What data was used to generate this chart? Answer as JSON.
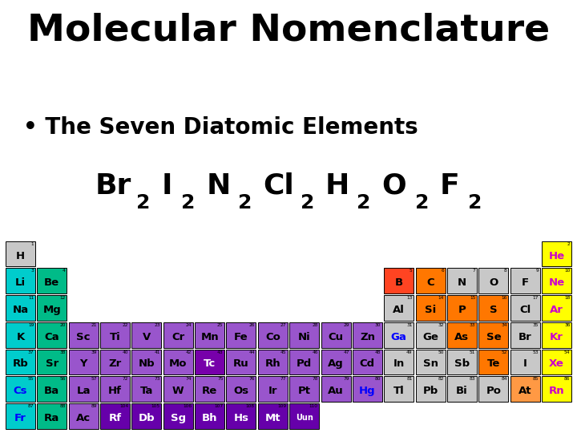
{
  "title": "Molecular Nomenclature",
  "bullet": "• The Seven Diatomic Elements",
  "bg_color": "#ffffff",
  "title_color": "#000000",
  "title_fontsize": 34,
  "bullet_fontsize": 20,
  "diatomic_fontsize": 26,
  "diatomic_sub_fontsize": 18,
  "diatomic_elements": [
    "Br",
    "I",
    "N",
    "Cl",
    "H",
    "O",
    "F"
  ],
  "periodic_table": {
    "num_cols": 18,
    "num_rows": 7,
    "elements": [
      {
        "symbol": "H",
        "num": "1",
        "row": 0,
        "col": 0,
        "color": "#c8c8c8",
        "text_color": "#000000"
      },
      {
        "symbol": "He",
        "num": "2",
        "row": 0,
        "col": 17,
        "color": "#ffff00",
        "text_color": "#cc00cc"
      },
      {
        "symbol": "Li",
        "num": "3",
        "row": 1,
        "col": 0,
        "color": "#00cccc",
        "text_color": "#000000"
      },
      {
        "symbol": "Be",
        "num": "4",
        "row": 1,
        "col": 1,
        "color": "#00bb88",
        "text_color": "#000000"
      },
      {
        "symbol": "B",
        "num": "5",
        "row": 1,
        "col": 12,
        "color": "#ff4422",
        "text_color": "#000000"
      },
      {
        "symbol": "C",
        "num": "6",
        "row": 1,
        "col": 13,
        "color": "#ff7700",
        "text_color": "#000000"
      },
      {
        "symbol": "N",
        "num": "7",
        "row": 1,
        "col": 14,
        "color": "#c8c8c8",
        "text_color": "#000000"
      },
      {
        "symbol": "O",
        "num": "8",
        "row": 1,
        "col": 15,
        "color": "#c8c8c8",
        "text_color": "#000000"
      },
      {
        "symbol": "F",
        "num": "9",
        "row": 1,
        "col": 16,
        "color": "#c8c8c8",
        "text_color": "#000000"
      },
      {
        "symbol": "Ne",
        "num": "10",
        "row": 1,
        "col": 17,
        "color": "#ffff00",
        "text_color": "#cc00cc"
      },
      {
        "symbol": "Na",
        "num": "11",
        "row": 2,
        "col": 0,
        "color": "#00cccc",
        "text_color": "#000000"
      },
      {
        "symbol": "Mg",
        "num": "12",
        "row": 2,
        "col": 1,
        "color": "#00bb88",
        "text_color": "#000000"
      },
      {
        "symbol": "Al",
        "num": "13",
        "row": 2,
        "col": 12,
        "color": "#c8c8c8",
        "text_color": "#000000"
      },
      {
        "symbol": "Si",
        "num": "14",
        "row": 2,
        "col": 13,
        "color": "#ff7700",
        "text_color": "#000000"
      },
      {
        "symbol": "P",
        "num": "15",
        "row": 2,
        "col": 14,
        "color": "#ff7700",
        "text_color": "#000000"
      },
      {
        "symbol": "S",
        "num": "16",
        "row": 2,
        "col": 15,
        "color": "#ff7700",
        "text_color": "#000000"
      },
      {
        "symbol": "Cl",
        "num": "17",
        "row": 2,
        "col": 16,
        "color": "#c8c8c8",
        "text_color": "#000000"
      },
      {
        "symbol": "Ar",
        "num": "18",
        "row": 2,
        "col": 17,
        "color": "#ffff00",
        "text_color": "#cc00cc"
      },
      {
        "symbol": "K",
        "num": "19",
        "row": 3,
        "col": 0,
        "color": "#00cccc",
        "text_color": "#000000"
      },
      {
        "symbol": "Ca",
        "num": "20",
        "row": 3,
        "col": 1,
        "color": "#00bb88",
        "text_color": "#000000"
      },
      {
        "symbol": "Sc",
        "num": "21",
        "row": 3,
        "col": 2,
        "color": "#9955cc",
        "text_color": "#000000"
      },
      {
        "symbol": "Ti",
        "num": "22",
        "row": 3,
        "col": 3,
        "color": "#9955cc",
        "text_color": "#000000"
      },
      {
        "symbol": "V",
        "num": "23",
        "row": 3,
        "col": 4,
        "color": "#9955cc",
        "text_color": "#000000"
      },
      {
        "symbol": "Cr",
        "num": "24",
        "row": 3,
        "col": 5,
        "color": "#9955cc",
        "text_color": "#000000"
      },
      {
        "symbol": "Mn",
        "num": "25",
        "row": 3,
        "col": 6,
        "color": "#9955cc",
        "text_color": "#000000"
      },
      {
        "symbol": "Fe",
        "num": "26",
        "row": 3,
        "col": 7,
        "color": "#9955cc",
        "text_color": "#000000"
      },
      {
        "symbol": "Co",
        "num": "27",
        "row": 3,
        "col": 8,
        "color": "#9955cc",
        "text_color": "#000000"
      },
      {
        "symbol": "Ni",
        "num": "28",
        "row": 3,
        "col": 9,
        "color": "#9955cc",
        "text_color": "#000000"
      },
      {
        "symbol": "Cu",
        "num": "29",
        "row": 3,
        "col": 10,
        "color": "#9955cc",
        "text_color": "#000000"
      },
      {
        "symbol": "Zn",
        "num": "30",
        "row": 3,
        "col": 11,
        "color": "#9955cc",
        "text_color": "#000000"
      },
      {
        "symbol": "Ga",
        "num": "31",
        "row": 3,
        "col": 12,
        "color": "#c8c8c8",
        "text_color": "#0000ff"
      },
      {
        "symbol": "Ge",
        "num": "32",
        "row": 3,
        "col": 13,
        "color": "#c8c8c8",
        "text_color": "#000000"
      },
      {
        "symbol": "As",
        "num": "33",
        "row": 3,
        "col": 14,
        "color": "#ff7700",
        "text_color": "#000000"
      },
      {
        "symbol": "Se",
        "num": "34",
        "row": 3,
        "col": 15,
        "color": "#ff7700",
        "text_color": "#000000"
      },
      {
        "symbol": "Br",
        "num": "35",
        "row": 3,
        "col": 16,
        "color": "#c8c8c8",
        "text_color": "#000000"
      },
      {
        "symbol": "Kr",
        "num": "36",
        "row": 3,
        "col": 17,
        "color": "#ffff00",
        "text_color": "#cc00cc"
      },
      {
        "symbol": "Rb",
        "num": "37",
        "row": 4,
        "col": 0,
        "color": "#00cccc",
        "text_color": "#000000"
      },
      {
        "symbol": "Sr",
        "num": "38",
        "row": 4,
        "col": 1,
        "color": "#00bb88",
        "text_color": "#000000"
      },
      {
        "symbol": "Y",
        "num": "39",
        "row": 4,
        "col": 2,
        "color": "#9955cc",
        "text_color": "#000000"
      },
      {
        "symbol": "Zr",
        "num": "40",
        "row": 4,
        "col": 3,
        "color": "#9955cc",
        "text_color": "#000000"
      },
      {
        "symbol": "Nb",
        "num": "41",
        "row": 4,
        "col": 4,
        "color": "#9955cc",
        "text_color": "#000000"
      },
      {
        "symbol": "Mo",
        "num": "42",
        "row": 4,
        "col": 5,
        "color": "#9955cc",
        "text_color": "#000000"
      },
      {
        "symbol": "Tc",
        "num": "43",
        "row": 4,
        "col": 6,
        "color": "#7700aa",
        "text_color": "#ffffff"
      },
      {
        "symbol": "Ru",
        "num": "44",
        "row": 4,
        "col": 7,
        "color": "#9955cc",
        "text_color": "#000000"
      },
      {
        "symbol": "Rh",
        "num": "45",
        "row": 4,
        "col": 8,
        "color": "#9955cc",
        "text_color": "#000000"
      },
      {
        "symbol": "Pd",
        "num": "46",
        "row": 4,
        "col": 9,
        "color": "#9955cc",
        "text_color": "#000000"
      },
      {
        "symbol": "Ag",
        "num": "47",
        "row": 4,
        "col": 10,
        "color": "#9955cc",
        "text_color": "#000000"
      },
      {
        "symbol": "Cd",
        "num": "48",
        "row": 4,
        "col": 11,
        "color": "#9955cc",
        "text_color": "#000000"
      },
      {
        "symbol": "In",
        "num": "49",
        "row": 4,
        "col": 12,
        "color": "#c8c8c8",
        "text_color": "#000000"
      },
      {
        "symbol": "Sn",
        "num": "50",
        "row": 4,
        "col": 13,
        "color": "#c8c8c8",
        "text_color": "#000000"
      },
      {
        "symbol": "Sb",
        "num": "51",
        "row": 4,
        "col": 14,
        "color": "#c8c8c8",
        "text_color": "#000000"
      },
      {
        "symbol": "Te",
        "num": "52",
        "row": 4,
        "col": 15,
        "color": "#ff7700",
        "text_color": "#000000"
      },
      {
        "symbol": "I",
        "num": "53",
        "row": 4,
        "col": 16,
        "color": "#c8c8c8",
        "text_color": "#000000"
      },
      {
        "symbol": "Xe",
        "num": "54",
        "row": 4,
        "col": 17,
        "color": "#ffff00",
        "text_color": "#cc00cc"
      },
      {
        "symbol": "Cs",
        "num": "55",
        "row": 5,
        "col": 0,
        "color": "#00cccc",
        "text_color": "#0000ff"
      },
      {
        "symbol": "Ba",
        "num": "56",
        "row": 5,
        "col": 1,
        "color": "#00bb88",
        "text_color": "#000000"
      },
      {
        "symbol": "La",
        "num": "57",
        "row": 5,
        "col": 2,
        "color": "#9955cc",
        "text_color": "#000000"
      },
      {
        "symbol": "Hf",
        "num": "72",
        "row": 5,
        "col": 3,
        "color": "#9955cc",
        "text_color": "#000000"
      },
      {
        "symbol": "Ta",
        "num": "73",
        "row": 5,
        "col": 4,
        "color": "#9955cc",
        "text_color": "#000000"
      },
      {
        "symbol": "W",
        "num": "74",
        "row": 5,
        "col": 5,
        "color": "#9955cc",
        "text_color": "#000000"
      },
      {
        "symbol": "Re",
        "num": "75",
        "row": 5,
        "col": 6,
        "color": "#9955cc",
        "text_color": "#000000"
      },
      {
        "symbol": "Os",
        "num": "76",
        "row": 5,
        "col": 7,
        "color": "#9955cc",
        "text_color": "#000000"
      },
      {
        "symbol": "Ir",
        "num": "77",
        "row": 5,
        "col": 8,
        "color": "#9955cc",
        "text_color": "#000000"
      },
      {
        "symbol": "Pt",
        "num": "78",
        "row": 5,
        "col": 9,
        "color": "#9955cc",
        "text_color": "#000000"
      },
      {
        "symbol": "Au",
        "num": "79",
        "row": 5,
        "col": 10,
        "color": "#9955cc",
        "text_color": "#000000"
      },
      {
        "symbol": "Hg",
        "num": "80",
        "row": 5,
        "col": 11,
        "color": "#9955cc",
        "text_color": "#0000ff"
      },
      {
        "symbol": "Tl",
        "num": "81",
        "row": 5,
        "col": 12,
        "color": "#c8c8c8",
        "text_color": "#000000"
      },
      {
        "symbol": "Pb",
        "num": "82",
        "row": 5,
        "col": 13,
        "color": "#c8c8c8",
        "text_color": "#000000"
      },
      {
        "symbol": "Bi",
        "num": "83",
        "row": 5,
        "col": 14,
        "color": "#c8c8c8",
        "text_color": "#000000"
      },
      {
        "symbol": "Po",
        "num": "84",
        "row": 5,
        "col": 15,
        "color": "#c8c8c8",
        "text_color": "#000000"
      },
      {
        "symbol": "At",
        "num": "85",
        "row": 5,
        "col": 16,
        "color": "#ff9944",
        "text_color": "#000000"
      },
      {
        "symbol": "Rn",
        "num": "86",
        "row": 5,
        "col": 17,
        "color": "#ffff00",
        "text_color": "#cc00cc"
      },
      {
        "symbol": "Fr",
        "num": "87",
        "row": 6,
        "col": 0,
        "color": "#00cccc",
        "text_color": "#0000ff"
      },
      {
        "symbol": "Ra",
        "num": "88",
        "row": 6,
        "col": 1,
        "color": "#00bb88",
        "text_color": "#000000"
      },
      {
        "symbol": "Ac",
        "num": "89",
        "row": 6,
        "col": 2,
        "color": "#9955cc",
        "text_color": "#000000"
      },
      {
        "symbol": "Rf",
        "num": "104",
        "row": 6,
        "col": 3,
        "color": "#6600aa",
        "text_color": "#ffffff"
      },
      {
        "symbol": "Db",
        "num": "105",
        "row": 6,
        "col": 4,
        "color": "#6600aa",
        "text_color": "#ffffff"
      },
      {
        "symbol": "Sg",
        "num": "106",
        "row": 6,
        "col": 5,
        "color": "#6600aa",
        "text_color": "#ffffff"
      },
      {
        "symbol": "Bh",
        "num": "107",
        "row": 6,
        "col": 6,
        "color": "#6600aa",
        "text_color": "#ffffff"
      },
      {
        "symbol": "Hs",
        "num": "108",
        "row": 6,
        "col": 7,
        "color": "#6600aa",
        "text_color": "#ffffff"
      },
      {
        "symbol": "Mt",
        "num": "109",
        "row": 6,
        "col": 8,
        "color": "#6600aa",
        "text_color": "#ffffff"
      },
      {
        "symbol": "Uun",
        "num": "110",
        "row": 6,
        "col": 9,
        "color": "#6600aa",
        "text_color": "#ffffff"
      }
    ]
  }
}
